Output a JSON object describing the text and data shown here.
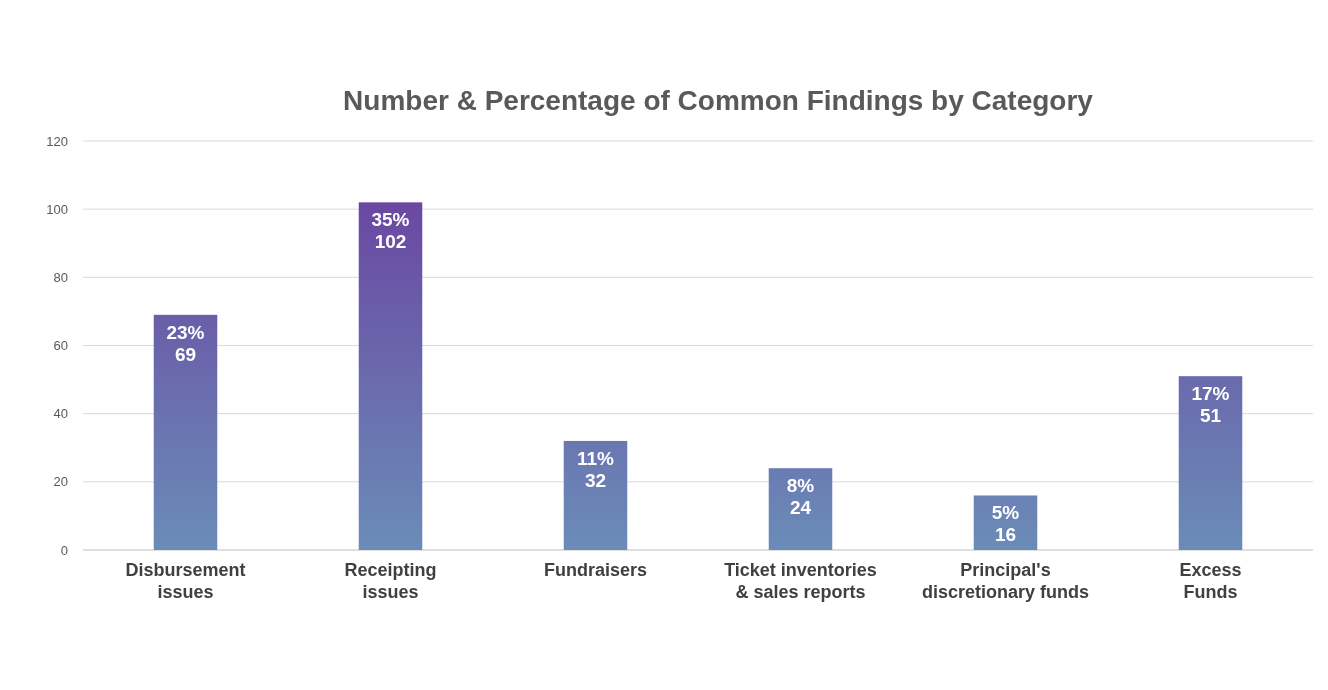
{
  "chart_data": {
    "type": "bar",
    "title": "Number & Percentage of Common Findings by Category",
    "categories": [
      "Disbursement issues",
      "Receipting issues",
      "Fundraisers",
      "Ticket inventories & sales reports",
      "Principal's discretionary funds",
      "Excess Funds"
    ],
    "values": [
      69,
      102,
      32,
      24,
      16,
      51
    ],
    "value_labels": [
      "23%\n69",
      "35%\n102",
      "11%\n32",
      "8%\n24",
      "5%\n16",
      "17%\n51"
    ],
    "color": "#6a48a2",
    "ylim": [
      0,
      120
    ],
    "yticks": [
      0,
      20,
      40,
      60,
      80,
      100,
      120
    ],
    "grid": "y"
  }
}
